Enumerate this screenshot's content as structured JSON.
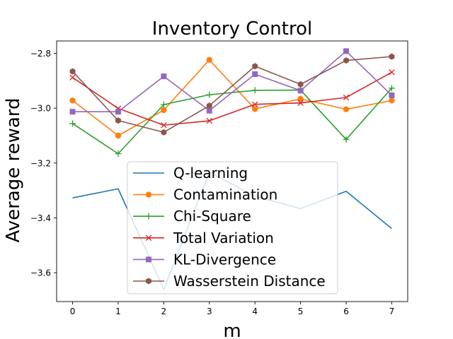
{
  "chart_data": {
    "type": "line",
    "title": "Inventory Control",
    "xlabel": "m",
    "ylabel": "Average reward",
    "x": [
      0,
      1,
      2,
      3,
      4,
      5,
      6,
      7
    ],
    "xlim": [
      -0.35,
      7.35
    ],
    "ylim": [
      -3.705,
      -2.755
    ],
    "xticks": [
      "0",
      "1",
      "2",
      "3",
      "4",
      "5",
      "6",
      "7"
    ],
    "yticks": [
      -3.6,
      -3.4,
      -3.2,
      -3.0,
      -2.8
    ],
    "ytick_labels": [
      "−3.6",
      "−3.4",
      "−3.2",
      "−3.0",
      "−2.8"
    ],
    "grid": false,
    "legend_position": "lower-center",
    "series": [
      {
        "name": "Q-learning",
        "color": "#1f77b4",
        "marker": "none",
        "values": [
          -3.327,
          -3.294,
          -3.661,
          -3.233,
          -3.321,
          -3.366,
          -3.303,
          -3.439
        ]
      },
      {
        "name": "Contamination",
        "color": "#ff7f0e",
        "marker": "circle",
        "values": [
          -2.972,
          -3.1,
          -3.007,
          -2.824,
          -3.003,
          -2.966,
          -3.004,
          -2.972
        ]
      },
      {
        "name": "Chi-Square",
        "color": "#2ca02c",
        "marker": "plus",
        "values": [
          -3.056,
          -3.166,
          -2.987,
          -2.951,
          -2.935,
          -2.934,
          -3.114,
          -2.927
        ]
      },
      {
        "name": "Total Variation",
        "color": "#d62728",
        "marker": "x",
        "values": [
          -2.888,
          -3.001,
          -3.062,
          -3.046,
          -2.986,
          -2.981,
          -2.961,
          -2.869
        ]
      },
      {
        "name": "KL-Divergence",
        "color": "#9467bd",
        "marker": "square",
        "values": [
          -3.013,
          -3.013,
          -2.884,
          -3.009,
          -2.876,
          -2.936,
          -2.792,
          -2.953
        ]
      },
      {
        "name": "Wasserstein Distance",
        "color": "#8c564b",
        "marker": "hexagon",
        "values": [
          -2.866,
          -3.045,
          -3.088,
          -2.991,
          -2.847,
          -2.913,
          -2.826,
          -2.812
        ]
      }
    ]
  }
}
